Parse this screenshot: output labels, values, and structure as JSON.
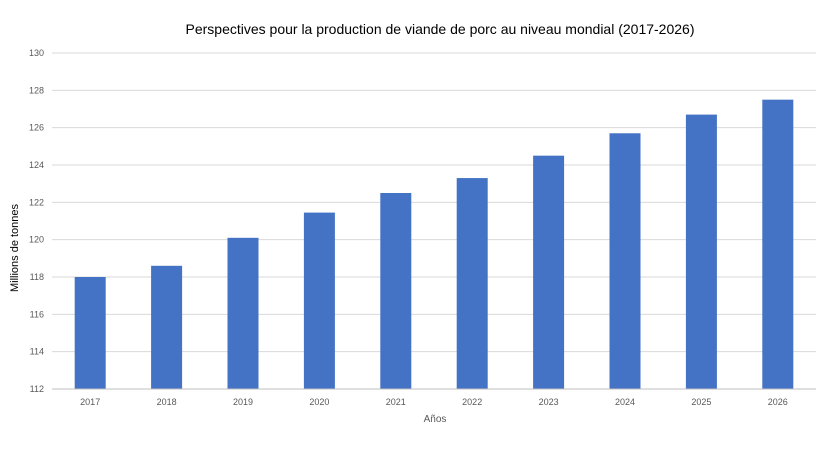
{
  "chart_data": {
    "type": "bar",
    "title": "Perspectives pour la production de viande de porc au niveau mondial (2017-2026)",
    "xlabel": "Años",
    "ylabel": "Millions de tonnes",
    "categories": [
      "2017",
      "2018",
      "2019",
      "2020",
      "2021",
      "2022",
      "2023",
      "2024",
      "2025",
      "2026"
    ],
    "values": [
      118.0,
      118.6,
      120.1,
      121.45,
      122.5,
      123.3,
      124.5,
      125.7,
      126.7,
      127.5
    ],
    "ylim": [
      112,
      130
    ],
    "yticks": [
      "112",
      "114",
      "116",
      "118",
      "120",
      "122",
      "124",
      "126",
      "128",
      "130"
    ],
    "grid": true,
    "legend": "none",
    "bar_color": "#4472C4",
    "grid_color": "#d9d9d9"
  }
}
